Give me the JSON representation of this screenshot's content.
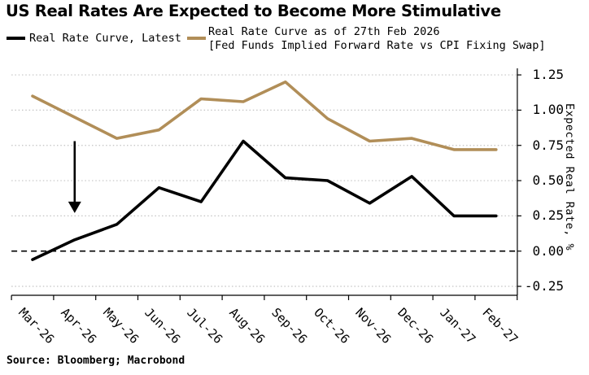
{
  "header": {
    "title": "US Real Rates Are Expected to Become More Stimulative"
  },
  "legend": [
    {
      "id": "latest",
      "label": "Real Rate Curve, Latest",
      "color": "#000000"
    },
    {
      "id": "forward-feb-2026",
      "line1": "Real Rate Curve as of 27th Feb 2026",
      "line2": "[Fed Funds Implied Forward Rate vs CPI Fixing Swap]",
      "color": "#b18e58"
    }
  ],
  "chart_data": {
    "type": "line",
    "title": "US Real Rates Are Expected to Become More Stimulative",
    "categories": [
      "Mar-26",
      "Apr-26",
      "May-26",
      "Jun-26",
      "Jul-26",
      "Aug-26",
      "Sep-26",
      "Oct-26",
      "Nov-26",
      "Dec-26",
      "Jan-27",
      "Feb-27"
    ],
    "series": [
      {
        "id": "latest",
        "name": "Real Rate Curve, Latest",
        "color": "#000000",
        "values": [
          -0.06,
          0.08,
          0.19,
          0.45,
          0.35,
          0.78,
          0.52,
          0.5,
          0.34,
          0.53,
          0.25,
          0.25
        ]
      },
      {
        "id": "forward-feb-2026",
        "name": "Real Rate Curve as of 27th Feb 2026 [Fed Funds Implied Forward Rate vs CPI Fixing Swap]",
        "color": "#b18e58",
        "values": [
          1.1,
          0.95,
          0.8,
          0.86,
          1.08,
          1.06,
          1.2,
          0.94,
          0.78,
          0.8,
          0.72,
          0.72
        ]
      }
    ],
    "xlabel": "",
    "ylabel": "Expected Real Rate, %",
    "yticks": [
      1.25,
      1.0,
      0.75,
      0.5,
      0.25,
      0.0,
      -0.25
    ],
    "ytick_labels": [
      "1.25",
      "1.00",
      "0.75",
      "0.50",
      "0.25",
      "0.00",
      "-0.25"
    ],
    "ylim": [
      -0.38,
      1.32
    ],
    "grid": "horizontal-dotted",
    "zero_line": "dashed-black",
    "legend_position": "top",
    "annotation": {
      "type": "down-arrow",
      "month": "Apr-26",
      "from": 0.78,
      "to": 0.27
    }
  },
  "footer": {
    "source": "Source: Bloomberg; Macrobond"
  }
}
